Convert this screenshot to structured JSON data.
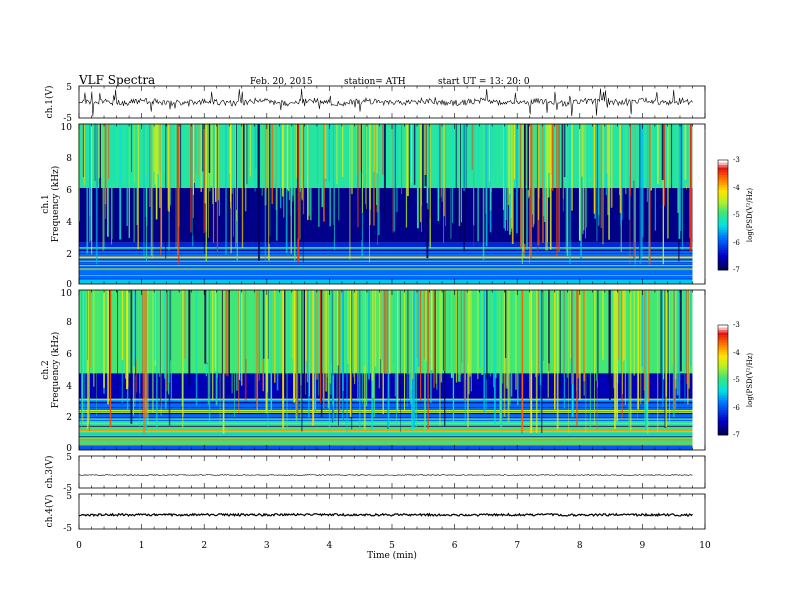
{
  "header": {
    "title": "VLF  Spectra",
    "date": "Feb. 20, 2015",
    "station": "station= ATH",
    "start": "start  UT  =   13: 20: 0"
  },
  "chart_data": [
    {
      "type": "line",
      "panel": "ch1-waveform",
      "ylabel": "ch.1(V)",
      "ylim": [
        -5,
        5
      ],
      "yticks": [
        "5",
        "-5"
      ],
      "xlim": [
        0,
        10
      ],
      "baseline": 0,
      "amplitude_typical": 1.0,
      "spikes": "frequent, up to ±5",
      "color": "#000000"
    },
    {
      "type": "heatmap",
      "panel": "ch1-spectrogram",
      "ylabel_top": "ch.1",
      "ylabel": "Frequency  (kHz)",
      "ylim": [
        0,
        10
      ],
      "yticks": [
        "0",
        "2",
        "4",
        "6",
        "8",
        "10"
      ],
      "xlim": [
        0,
        9.8
      ],
      "bands": [
        {
          "from": 0.0,
          "to": 0.3,
          "level": -5.5
        },
        {
          "from": 0.3,
          "to": 2.3,
          "level": -5.9
        },
        {
          "from": 2.3,
          "to": 2.6,
          "level": -6.3
        },
        {
          "from": 2.6,
          "to": 6.0,
          "level": -6.8
        },
        {
          "from": 6.0,
          "to": 10.0,
          "level": -5.1
        }
      ],
      "colorbar": {
        "label": "log(PSD(V²/Hz)",
        "ticks": [
          "-3",
          "-4",
          "-5",
          "-6",
          "-7"
        ],
        "range": [
          -7,
          -3
        ]
      }
    },
    {
      "type": "heatmap",
      "panel": "ch2-spectrogram",
      "ylabel_top": "ch.2",
      "ylabel": "Frequency  (kHz)",
      "ylim": [
        0,
        10
      ],
      "yticks": [
        "0",
        "2",
        "4",
        "6",
        "8",
        "10"
      ],
      "xlim": [
        0,
        9.8
      ],
      "bands": [
        {
          "from": 0.0,
          "to": 0.3,
          "level": -6.0
        },
        {
          "from": 0.3,
          "to": 1.8,
          "level": -5.0
        },
        {
          "from": 1.8,
          "to": 3.2,
          "level": -5.9
        },
        {
          "from": 3.2,
          "to": 4.8,
          "level": -6.6
        },
        {
          "from": 4.8,
          "to": 10.0,
          "level": -4.9
        }
      ],
      "colorbar": {
        "label": "log(PSD(V²/Hz)",
        "ticks": [
          "-3",
          "-4",
          "-5",
          "-6",
          "-7"
        ],
        "range": [
          -7,
          -3
        ]
      }
    },
    {
      "type": "line",
      "panel": "ch3-waveform",
      "ylabel": "ch.3(V)",
      "ylim": [
        -5,
        5
      ],
      "yticks": [
        "5",
        "-5"
      ],
      "xlim": [
        0,
        10
      ],
      "baseline": -1,
      "amplitude_typical": 0.15,
      "color": "#000000"
    },
    {
      "type": "line",
      "panel": "ch4-waveform",
      "ylabel": "ch.4(V)",
      "ylim": [
        -5,
        5
      ],
      "yticks": [
        "5",
        "-5"
      ],
      "xlim": [
        0,
        10
      ],
      "baseline": -1,
      "amplitude_typical": 0.35,
      "color": "#000000"
    }
  ],
  "xaxis": {
    "label": "Time  (min)",
    "ticks": [
      "0",
      "1",
      "2",
      "3",
      "4",
      "5",
      "6",
      "7",
      "8",
      "9",
      "10"
    ],
    "range": [
      0,
      10
    ]
  }
}
